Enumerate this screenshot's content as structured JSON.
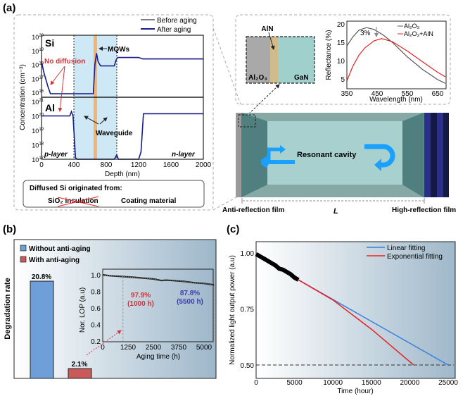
{
  "panels": {
    "a": "(a)",
    "b": "(b)",
    "c": "(c)"
  },
  "a_sims": {
    "legend": [
      "Before aging",
      "After aging"
    ],
    "si_label": "Si",
    "al_label": "Al",
    "mqw_label": "MQWs",
    "no_diffusion": "No diffusion",
    "waveguide": "Waveguide",
    "p_layer": "p-layer",
    "n_layer": "n-layer",
    "ylabel": "Concentration (cm⁻³)",
    "xlabel": "Depth (nm)",
    "x_ticks": [
      "0",
      "400",
      "800",
      "1200",
      "1600",
      "2000"
    ],
    "si_ticks": [
      "20",
      "19",
      "18",
      "17",
      "16"
    ],
    "al_ticks": [
      "21",
      "20",
      "19",
      "18",
      "17"
    ],
    "box_title": "Diffused Si originated from:",
    "box_item1": "SiO₂ insulation",
    "box_item2": "Coating material"
  },
  "a_cavity": {
    "aln": "AlN",
    "al2o3": "Al₂O₃",
    "gan": "GaN",
    "resonant": "Resonant cavity",
    "anti": "Anti-reflection film",
    "L": "L",
    "high": "High-reflection film"
  },
  "a_refl": {
    "ylabel": "Reflectance (%)",
    "xlabel": "Wavelength (nm)",
    "x_ticks": [
      "350",
      "450",
      "550",
      "650"
    ],
    "y_ticks": [
      "20",
      "15",
      "10",
      "5"
    ],
    "legend": [
      "Al₂O₃",
      "Al₂O₃+AlN"
    ],
    "delta": "3%"
  },
  "b": {
    "legend": [
      "Without anti-aging",
      "With anti-aging"
    ],
    "ylabel": "Degradation rate",
    "bar_labels": [
      "20.8%",
      "2.1%"
    ],
    "inset": {
      "ylabel": "Nor. LOP (a.u)",
      "xlabel": "Aging time (h)",
      "x_ticks": [
        "0",
        "1250",
        "2500",
        "3750",
        "5000"
      ],
      "y_ticks": [
        "1.0",
        "0.8",
        "0.6",
        "0.4",
        "0.2"
      ],
      "ann1": [
        "97.9%",
        "(1000 h)"
      ],
      "ann2": [
        "87.8%",
        "(5500 h)"
      ]
    }
  },
  "c": {
    "ylabel": "Normalized light output power (a.u)",
    "xlabel": "Time (hour)",
    "x_ticks": [
      "0",
      "5000",
      "10000",
      "15000",
      "20000",
      "25000"
    ],
    "y_ticks": [
      "1.00",
      "0.75",
      "0.50"
    ],
    "legend": [
      "Linear fitting",
      "Exponential fitting"
    ]
  },
  "colors": {
    "before": "#555555",
    "after": "#1a1f8c",
    "waveguide": "#cfe8f5",
    "mqw": "#f5b36b",
    "blue_bar": "#6f9fd8",
    "red_bar": "#c85a5a",
    "linear": "#3a7fdc",
    "exp": "#e82020",
    "ann_red": "#d0343a",
    "ann_blue": "#3b3fa8",
    "arrow": "#1aa0ff"
  },
  "chart_data": [
    {
      "type": "line",
      "title": "Si",
      "xlabel": "Depth (nm)",
      "ylabel": "Concentration (cm⁻³)",
      "yscale": "log",
      "xlim": [
        0,
        2000
      ],
      "ylim_log10": [
        15.6,
        20
      ],
      "series": [
        {
          "name": "After aging",
          "x": [
            0,
            30,
            80,
            110,
            400,
            640,
            660,
            680,
            700,
            730,
            900,
            920,
            940,
            1200,
            1250,
            1300,
            2000
          ],
          "log10_y": [
            18.2,
            17.4,
            16.4,
            15.9,
            15.9,
            15.9,
            18.0,
            18.8,
            18.2,
            17.9,
            17.9,
            18.3,
            18.5,
            18.5,
            18.4,
            18.4,
            18.4
          ]
        }
      ]
    },
    {
      "type": "line",
      "title": "Al",
      "xlabel": "Depth (nm)",
      "ylabel": "Concentration (cm⁻³)",
      "yscale": "log",
      "xlim": [
        0,
        2000
      ],
      "ylim_log10": [
        17,
        21
      ],
      "series": [
        {
          "name": "After aging",
          "x": [
            0,
            350,
            370,
            390,
            420,
            440,
            900,
            930,
            950,
            1200,
            1230,
            1260,
            2000
          ],
          "log10_y": [
            20.0,
            20.0,
            20.3,
            20.0,
            17.1,
            17.0,
            17.0,
            17.3,
            17.0,
            17.0,
            17.5,
            20.15,
            20.15
          ]
        }
      ]
    },
    {
      "type": "line",
      "xlabel": "Wavelength (nm)",
      "ylabel": "Reflectance (%)",
      "xlim": [
        350,
        675
      ],
      "ylim": [
        4,
        20.5
      ],
      "series": [
        {
          "name": "Al₂O₃",
          "x": [
            350,
            370,
            390,
            415,
            440,
            470,
            500,
            550,
            600,
            650,
            675
          ],
          "y": [
            14,
            16.5,
            18.3,
            19,
            18.5,
            17,
            15,
            11,
            7.6,
            4.8,
            3.8
          ]
        },
        {
          "name": "Al₂O₃+AlN",
          "x": [
            350,
            370,
            390,
            410,
            440,
            465,
            500,
            550,
            600,
            650,
            675
          ],
          "y": [
            4.5,
            8.5,
            11.5,
            13.5,
            15.4,
            16,
            15.2,
            12.6,
            9.7,
            6.8,
            5.6
          ]
        }
      ]
    },
    {
      "type": "bar",
      "ylabel": "Degradation rate",
      "categories": [
        "Without anti-aging",
        "With anti-aging"
      ],
      "values": [
        20.8,
        2.1
      ]
    },
    {
      "type": "line",
      "xlabel": "Aging time (h)",
      "ylabel": "Nor. LOP (a.u)",
      "xlim": [
        0,
        5600
      ],
      "ylim": [
        0.2,
        1.05
      ],
      "series": [
        {
          "x": [
            0,
            300,
            600,
            1000,
            1500,
            2000,
            2500,
            2900,
            3100,
            3500,
            4000,
            4500,
            5000,
            5500
          ],
          "y": [
            1.0,
            0.99,
            0.985,
            0.979,
            0.97,
            0.96,
            0.95,
            0.93,
            0.935,
            0.93,
            0.92,
            0.905,
            0.895,
            0.878
          ]
        }
      ]
    },
    {
      "type": "line",
      "xlabel": "Time (hour)",
      "ylabel": "Normalized light output power (a.u)",
      "xlim": [
        0,
        26000
      ],
      "ylim": [
        0.45,
        1.05
      ],
      "series": [
        {
          "name": "data",
          "x": [
            0,
            500,
            1000,
            1500,
            2000,
            2500,
            3000,
            3500,
            4000,
            4500,
            5000,
            5500
          ],
          "y": [
            0.995,
            0.985,
            0.975,
            0.965,
            0.955,
            0.945,
            0.93,
            0.925,
            0.915,
            0.905,
            0.89,
            0.88
          ]
        },
        {
          "name": "Linear fitting",
          "x": [
            5500,
            25000
          ],
          "y": [
            0.88,
            0.5
          ]
        },
        {
          "name": "Exponential fitting",
          "x": [
            5500,
            10000,
            15000,
            20500
          ],
          "y": [
            0.88,
            0.79,
            0.66,
            0.5
          ]
        }
      ],
      "reference_line": 0.5
    }
  ]
}
